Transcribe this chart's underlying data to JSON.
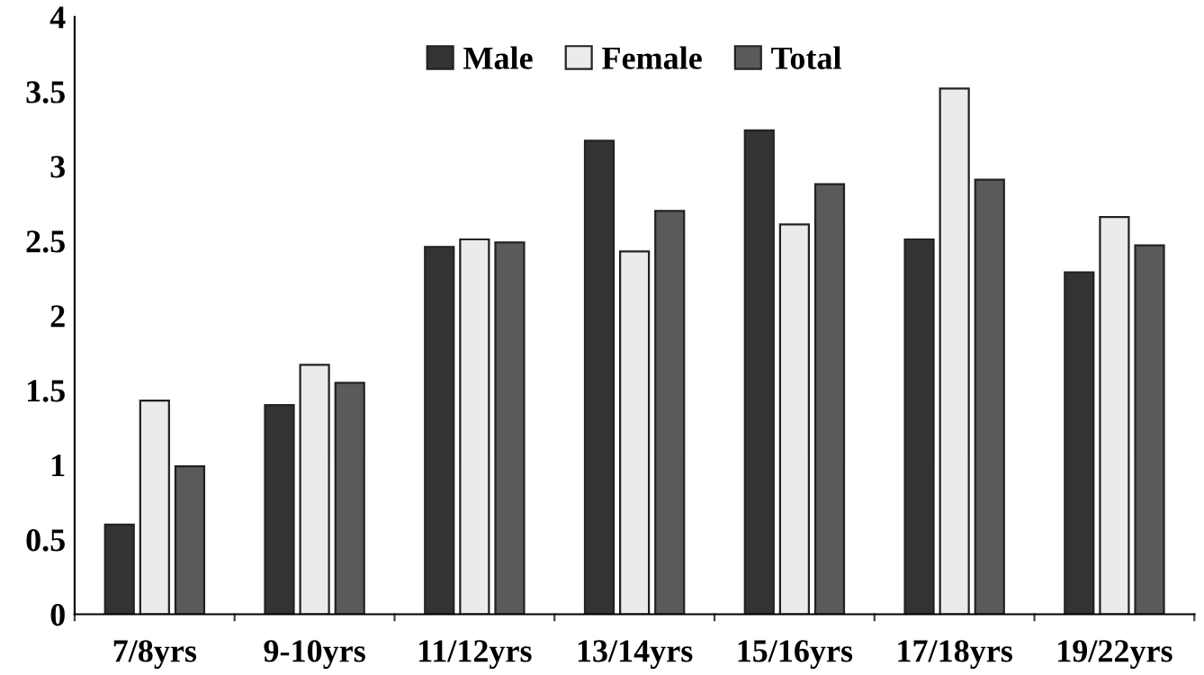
{
  "chart_data": {
    "type": "bar",
    "categories": [
      "7/8yrs",
      "9-10yrs",
      "11/12yrs",
      "13/14yrs",
      "15/16yrs",
      "17/18yrs",
      "19/22yrs"
    ],
    "series": [
      {
        "name": "Male",
        "color": "#333333",
        "values": [
          0.6,
          1.4,
          2.46,
          3.17,
          3.24,
          2.51,
          2.29
        ]
      },
      {
        "name": "Female",
        "color": "#ebebeb",
        "values": [
          1.43,
          1.67,
          2.51,
          2.43,
          2.61,
          3.52,
          2.66
        ]
      },
      {
        "name": "Total",
        "color": "#5a5a5a",
        "values": [
          0.99,
          1.55,
          2.49,
          2.7,
          2.88,
          2.91,
          2.47
        ]
      }
    ],
    "ylim": [
      0,
      4
    ],
    "yticks": [
      0,
      0.5,
      1,
      1.5,
      2,
      2.5,
      3,
      3.5,
      4
    ],
    "grid": false,
    "legend": "top"
  }
}
